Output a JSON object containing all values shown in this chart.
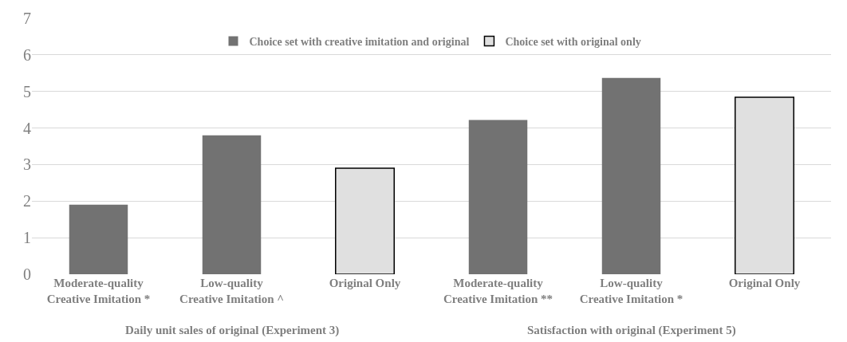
{
  "chart_data": {
    "type": "bar",
    "categories": [
      "Moderate-quality\nCreative Imitation *",
      "Low-quality\nCreative Imitation ^",
      "Original Only",
      "Moderate-quality\nCreative Imitation **",
      "Low-quality\nCreative Imitation *",
      "Original Only"
    ],
    "series": [
      {
        "name": "Choice set with creative imitation and original",
        "color": "#727272",
        "values": [
          1.9,
          3.8,
          null,
          4.22,
          5.37,
          null
        ]
      },
      {
        "name": "Choice set with original only",
        "color": "#e0e0e0",
        "values": [
          null,
          null,
          2.9,
          null,
          null,
          4.84
        ]
      }
    ],
    "ylim": [
      0,
      7
    ],
    "yticks": [
      0,
      1,
      2,
      3,
      4,
      5,
      6,
      7
    ],
    "grid": "y",
    "legend": "top",
    "annotations": [
      "Daily unit sales of original (Experiment 3)",
      "Satisfaction with original (Experiment 5)"
    ]
  }
}
